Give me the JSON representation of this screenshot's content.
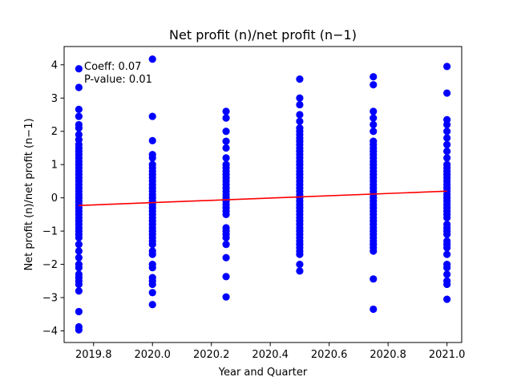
{
  "chart_data": {
    "type": "scatter",
    "title": "Net profit (n)/net profit (n−1)",
    "xlabel": "Year and Quarter",
    "ylabel": "Net profit (n)/net profit (n−1)",
    "xlim": [
      2019.7,
      2021.05
    ],
    "ylim": [
      -4.35,
      4.55
    ],
    "xticks": [
      2019.8,
      2020.0,
      2020.2,
      2020.4,
      2020.6,
      2020.8,
      2021.0
    ],
    "xtick_labels": [
      "2019.8",
      "2020.0",
      "2020.2",
      "2020.4",
      "2020.6",
      "2020.8",
      "2021.0"
    ],
    "yticks": [
      -4,
      -3,
      -2,
      -1,
      0,
      1,
      2,
      3,
      4
    ],
    "ytick_labels": [
      "−4",
      "−3",
      "−2",
      "−1",
      "0",
      "1",
      "2",
      "3",
      "4"
    ],
    "grid": false,
    "point_color": "#0000ff",
    "line_color": "#ff0000",
    "annotations": [
      "Coeff: 0.07",
      "P-value: 0.01"
    ],
    "trend_line": {
      "x": [
        2019.75,
        2021.0
      ],
      "y": [
        -0.23,
        0.2
      ]
    },
    "series": [
      {
        "x_values": [
          2019.75,
          2020.0,
          2020.25,
          2020.5,
          2020.75,
          2021.0
        ],
        "y_values": [
          [
            3.88,
            3.32,
            2.66,
            2.45,
            2.2,
            2.1,
            1.9,
            1.75,
            1.6,
            1.5,
            1.4,
            1.3,
            1.2,
            1.1,
            1.0,
            0.9,
            0.8,
            0.7,
            0.6,
            0.5,
            0.4,
            0.3,
            0.2,
            0.1,
            0.0,
            -0.1,
            -0.2,
            -0.3,
            -0.4,
            -0.5,
            -0.6,
            -0.7,
            -0.8,
            -0.9,
            -1.0,
            -1.1,
            -1.2,
            -1.4,
            -1.6,
            -1.8,
            -2.0,
            -2.1,
            -2.3,
            -2.4,
            -2.5,
            -2.6,
            -2.8,
            -3.42,
            -3.88,
            -3.97
          ],
          [
            4.17,
            2.45,
            1.72,
            1.3,
            1.2,
            1.0,
            0.9,
            0.8,
            0.7,
            0.6,
            0.5,
            0.4,
            0.3,
            0.2,
            0.1,
            0.0,
            -0.1,
            -0.2,
            -0.3,
            -0.4,
            -0.5,
            -0.6,
            -0.7,
            -0.8,
            -0.9,
            -1.0,
            -1.1,
            -1.2,
            -1.3,
            -1.4,
            -1.6,
            -1.7,
            -2.0,
            -2.1,
            -2.4,
            -2.5,
            -2.6,
            -2.85,
            -3.21
          ],
          [
            2.6,
            2.4,
            2.0,
            1.7,
            1.5,
            1.2,
            1.0,
            0.9,
            0.8,
            0.7,
            0.6,
            0.5,
            0.4,
            0.3,
            0.2,
            0.1,
            0.0,
            -0.1,
            -0.2,
            -0.3,
            -0.4,
            -0.5,
            -0.9,
            -1.0,
            -1.1,
            -1.2,
            -1.4,
            -1.8,
            -2.37,
            -2.98
          ],
          [
            3.57,
            3.0,
            2.8,
            2.5,
            2.3,
            2.1,
            2.0,
            1.9,
            1.8,
            1.7,
            1.6,
            1.5,
            1.4,
            1.3,
            1.2,
            1.1,
            1.0,
            0.9,
            0.8,
            0.7,
            0.6,
            0.5,
            0.4,
            0.3,
            0.2,
            0.1,
            0.0,
            -0.1,
            -0.2,
            -0.3,
            -0.4,
            -0.5,
            -0.6,
            -0.7,
            -0.8,
            -0.9,
            -1.0,
            -1.1,
            -1.2,
            -1.3,
            -1.4,
            -1.5,
            -1.6,
            -1.7,
            -2.0,
            -2.2
          ],
          [
            3.64,
            3.4,
            2.6,
            2.4,
            2.2,
            2.0,
            1.7,
            1.6,
            1.5,
            1.4,
            1.3,
            1.2,
            1.1,
            1.0,
            0.9,
            0.8,
            0.7,
            0.6,
            0.5,
            0.4,
            0.3,
            0.2,
            0.1,
            0.0,
            -0.1,
            -0.2,
            -0.3,
            -0.4,
            -0.5,
            -0.6,
            -0.7,
            -0.8,
            -0.9,
            -1.0,
            -1.1,
            -1.2,
            -1.3,
            -1.4,
            -1.5,
            -1.6,
            -2.44,
            -3.35
          ],
          [
            3.95,
            3.15,
            2.35,
            2.2,
            2.0,
            1.8,
            1.6,
            1.4,
            1.2,
            1.0,
            0.9,
            0.8,
            0.7,
            0.6,
            0.5,
            0.4,
            0.3,
            0.2,
            0.1,
            0.0,
            -0.1,
            -0.2,
            -0.3,
            -0.4,
            -0.5,
            -0.6,
            -0.8,
            -0.9,
            -1.0,
            -1.1,
            -1.3,
            -1.4,
            -1.5,
            -1.7,
            -2.0,
            -2.1,
            -2.3,
            -2.5,
            -2.6,
            -3.05
          ]
        ]
      }
    ]
  }
}
